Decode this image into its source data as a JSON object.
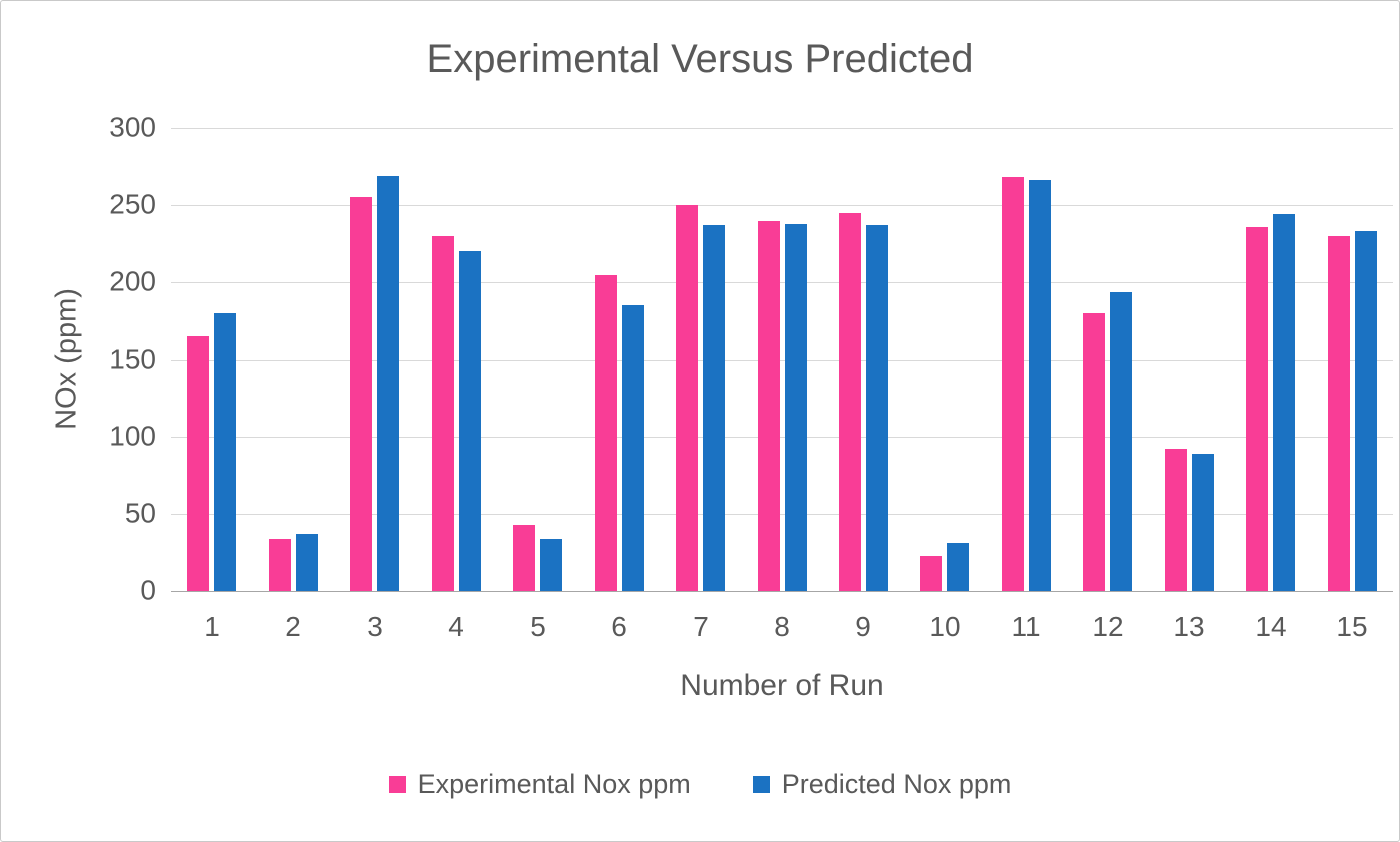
{
  "chart_data": {
    "type": "bar",
    "title": "Experimental Versus Predicted",
    "xlabel": "Number of Run",
    "ylabel": "NOx (ppm)",
    "ylim": [
      0,
      300
    ],
    "yticks": [
      0,
      50,
      100,
      150,
      200,
      250,
      300
    ],
    "grid": true,
    "legend_position": "bottom",
    "categories": [
      "1",
      "2",
      "3",
      "4",
      "5",
      "6",
      "7",
      "8",
      "9",
      "10",
      "11",
      "12",
      "13",
      "14",
      "15"
    ],
    "series": [
      {
        "name": "Experimental Nox ppm",
        "color": "#F93D96",
        "values": [
          165,
          34,
          255,
          230,
          43,
          205,
          250,
          240,
          245,
          23,
          268,
          180,
          92,
          236,
          230
        ]
      },
      {
        "name": "Predicted Nox ppm",
        "color": "#1B72C2",
        "values": [
          180,
          37,
          269,
          220,
          34,
          185,
          237,
          238,
          237,
          31,
          266,
          194,
          89,
          244,
          233
        ]
      }
    ]
  }
}
